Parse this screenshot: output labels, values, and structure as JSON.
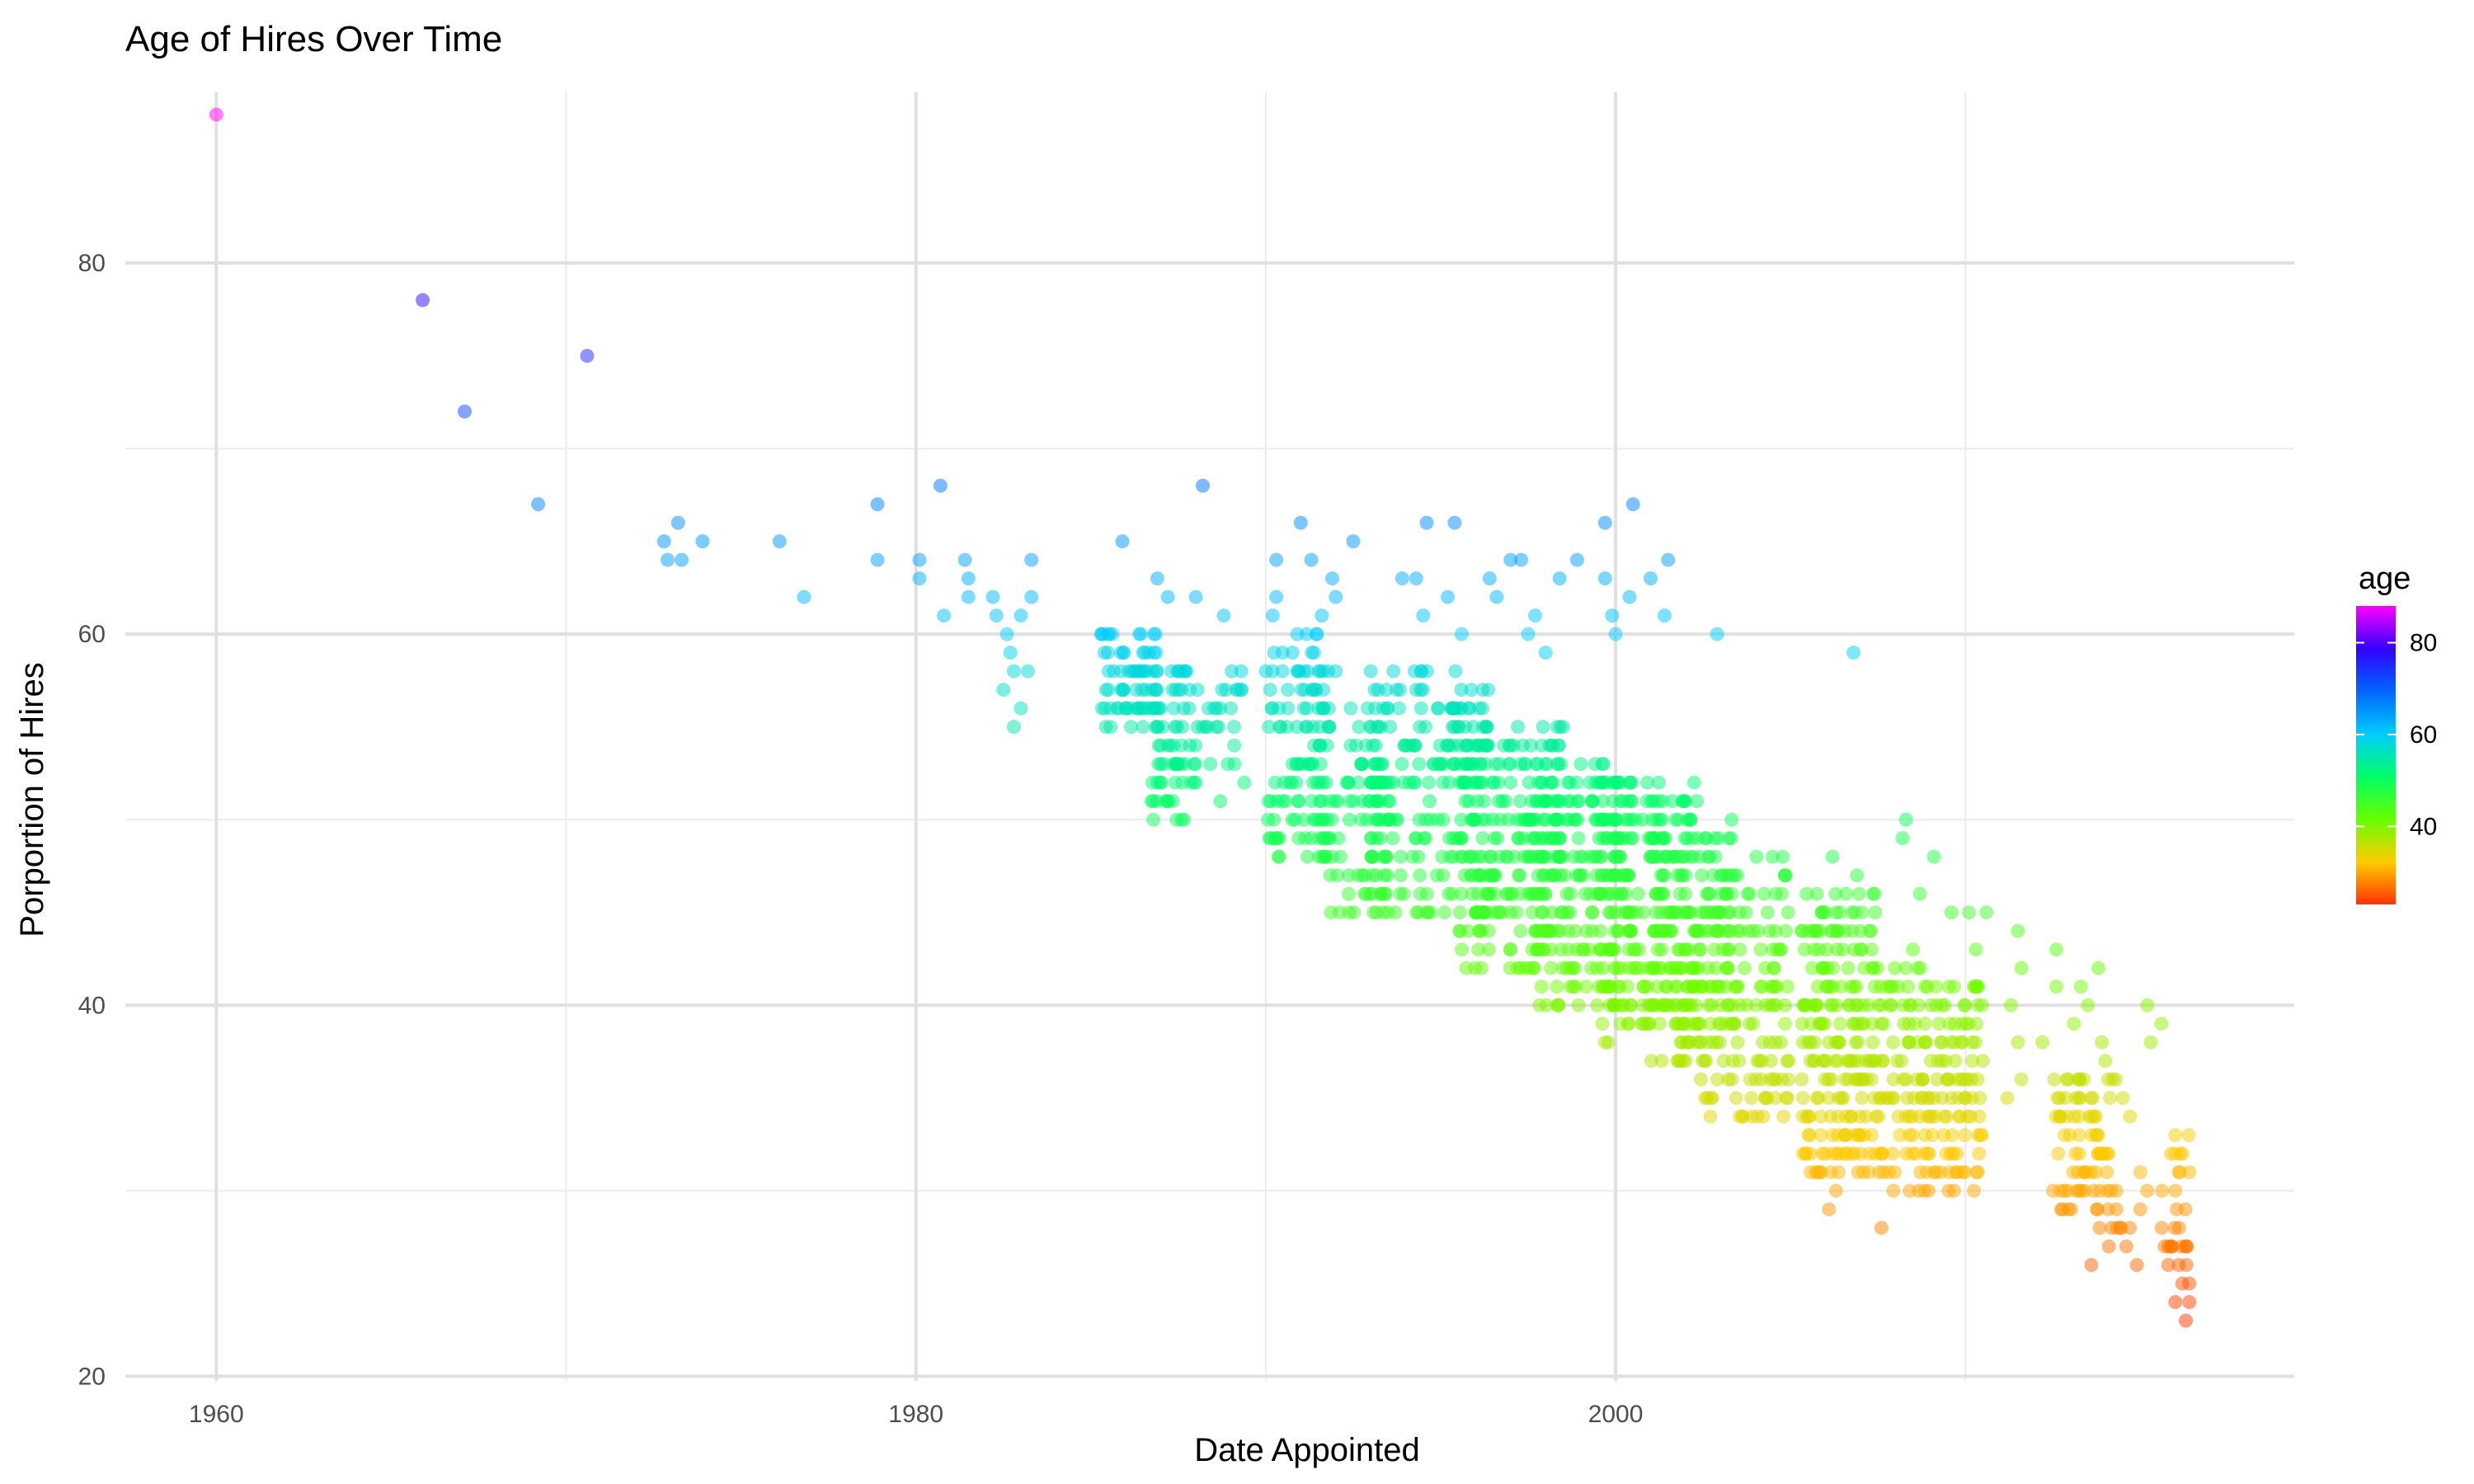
{
  "chart_data": {
    "type": "scatter",
    "title": "Age of Hires Over Time",
    "xlabel": "Date Appointed",
    "ylabel": "Porportion of Hires",
    "x_ticks": [
      1960,
      1980,
      2000
    ],
    "x_minor_ticks": [
      1970,
      1990,
      2010
    ],
    "y_ticks": [
      20,
      40,
      60,
      80
    ],
    "y_minor_ticks": [
      30,
      50,
      70
    ],
    "xlim": [
      1957.4,
      2019.4
    ],
    "ylim": [
      19.75,
      89.2
    ],
    "grid": true,
    "legend": {
      "title": "age",
      "placement": "right",
      "ticks": [
        40,
        60,
        80
      ],
      "range": [
        23,
        88
      ],
      "colors": [
        "#ff3300",
        "#ffcc00",
        "#66ff00",
        "#00ff66",
        "#00ccff",
        "#0066ff",
        "#3300ff",
        "#ff00ff"
      ]
    },
    "point_opacity": 0.5,
    "color_by": "y",
    "points": [
      [
        1960.0,
        88
      ],
      [
        1965.9,
        78
      ],
      [
        1967.1,
        72
      ],
      [
        1970.6,
        75
      ],
      [
        1969.2,
        67
      ],
      [
        1972.8,
        65
      ],
      [
        1973.2,
        66
      ],
      [
        1972.9,
        64
      ],
      [
        1973.3,
        64
      ],
      [
        1973.9,
        65
      ],
      [
        1976.1,
        65
      ],
      [
        1976.8,
        62
      ],
      [
        1978.9,
        67
      ],
      [
        1978.9,
        64
      ],
      [
        1980.7,
        68
      ],
      [
        1980.1,
        64
      ],
      [
        1980.1,
        63
      ],
      [
        1980.8,
        61
      ],
      [
        1981.4,
        64
      ],
      [
        1981.5,
        63
      ],
      [
        1981.5,
        62
      ],
      [
        1982.2,
        62
      ],
      [
        1982.3,
        61
      ],
      [
        1982.6,
        60
      ],
      [
        1982.7,
        59
      ],
      [
        1982.8,
        58
      ],
      [
        1982.5,
        57
      ],
      [
        1982.8,
        55
      ],
      [
        1983.0,
        61
      ],
      [
        1983.0,
        56
      ],
      [
        1983.3,
        64
      ],
      [
        1983.3,
        62
      ],
      [
        1983.2,
        58
      ],
      [
        1988.2,
        68
      ],
      [
        1985.9,
        65
      ],
      [
        1986.9,
        63
      ],
      [
        1987.2,
        62
      ],
      [
        1988.0,
        62
      ],
      [
        1988.8,
        61
      ],
      [
        1988.7,
        51
      ],
      [
        1988.0,
        52
      ],
      [
        1987.4,
        55
      ],
      [
        1989.0,
        56
      ],
      [
        1990.3,
        64
      ],
      [
        1990.3,
        62
      ],
      [
        1990.2,
        61
      ],
      [
        1990.9,
        60
      ],
      [
        1991.0,
        66
      ],
      [
        1991.3,
        64
      ],
      [
        1991.6,
        61
      ],
      [
        1992.5,
        65
      ],
      [
        1991.9,
        63
      ],
      [
        1992.0,
        62
      ],
      [
        1992.0,
        58
      ],
      [
        1993.0,
        58
      ],
      [
        1993.9,
        63
      ],
      [
        1994.6,
        66
      ],
      [
        1994.3,
        63
      ],
      [
        1994.5,
        61
      ],
      [
        1995.4,
        66
      ],
      [
        1995.2,
        62
      ],
      [
        1995.6,
        60
      ],
      [
        1996.4,
        63
      ],
      [
        1996.6,
        62
      ],
      [
        1997.0,
        64
      ],
      [
        1997.3,
        64
      ],
      [
        1997.5,
        60
      ],
      [
        1997.7,
        61
      ],
      [
        1998.0,
        59
      ],
      [
        1998.4,
        63
      ],
      [
        1998.9,
        64
      ],
      [
        1999.7,
        66
      ],
      [
        1999.7,
        63
      ],
      [
        1999.9,
        61
      ],
      [
        2000.0,
        60
      ],
      [
        2000.5,
        67
      ],
      [
        2000.4,
        62
      ],
      [
        2001.0,
        63
      ],
      [
        2001.5,
        64
      ],
      [
        2001.4,
        61
      ],
      [
        2002.9,
        60
      ],
      [
        2006.8,
        59
      ],
      [
        2006.2,
        48
      ],
      [
        2006.9,
        47
      ],
      [
        2007.4,
        46
      ],
      [
        2007.6,
        28
      ],
      [
        2006.1,
        29
      ],
      [
        2006.3,
        30
      ],
      [
        2008.3,
        50
      ],
      [
        2008.2,
        49
      ],
      [
        2008.7,
        46
      ],
      [
        2008.5,
        43
      ],
      [
        2009.1,
        48
      ],
      [
        2009.6,
        45
      ],
      [
        2010.1,
        45
      ],
      [
        2010.6,
        45
      ],
      [
        2010.3,
        43
      ],
      [
        2011.5,
        44
      ],
      [
        2011.6,
        42
      ],
      [
        2011.3,
        40
      ],
      [
        2011.5,
        38
      ],
      [
        2011.6,
        36
      ],
      [
        2011.2,
        35
      ],
      [
        2012.6,
        43
      ],
      [
        2012.6,
        41
      ],
      [
        2012.2,
        38
      ],
      [
        2012.9,
        34
      ],
      [
        2013.3,
        41
      ],
      [
        2013.5,
        40
      ],
      [
        2013.1,
        39
      ],
      [
        2013.8,
        42
      ],
      [
        2013.9,
        38
      ],
      [
        2014.0,
        37
      ],
      [
        2014.2,
        36
      ],
      [
        2014.5,
        35
      ],
      [
        2014.7,
        34
      ],
      [
        2013.6,
        26
      ],
      [
        2014.1,
        27
      ],
      [
        2014.7,
        28
      ],
      [
        2015.0,
        31
      ],
      [
        2015.2,
        30
      ],
      [
        2015.0,
        29
      ],
      [
        2014.9,
        26
      ],
      [
        2014.6,
        27
      ],
      [
        2015.3,
        38
      ],
      [
        2015.6,
        39
      ],
      [
        2015.2,
        40
      ],
      [
        2016.0,
        33
      ],
      [
        2016.2,
        32
      ],
      [
        2016.1,
        31
      ],
      [
        2016.0,
        30
      ],
      [
        2015.9,
        27
      ],
      [
        2016.3,
        27
      ],
      [
        2015.8,
        26
      ],
      [
        2016.1,
        26
      ],
      [
        2016.2,
        25
      ],
      [
        2016.0,
        24
      ],
      [
        2016.4,
        24
      ],
      [
        2016.3,
        23
      ],
      [
        2016.4,
        25
      ]
    ],
    "clusters": [
      {
        "x": [
          1985.3,
          1987.0
        ],
        "y": [
          55,
          60
        ],
        "n": 70
      },
      {
        "x": [
          1986.7,
          1987.7
        ],
        "y": [
          50,
          58
        ],
        "n": 50
      },
      {
        "x": [
          1987.0,
          1989.4
        ],
        "y": [
          52,
          58
        ],
        "n": 40
      },
      {
        "x": [
          1990.0,
          1991.9
        ],
        "y": [
          48,
          60
        ],
        "n": 110
      },
      {
        "x": [
          1991.5,
          1993.5
        ],
        "y": [
          45,
          56
        ],
        "n": 80
      },
      {
        "x": [
          1993.0,
          1996.5
        ],
        "y": [
          45,
          58
        ],
        "n": 200
      },
      {
        "x": [
          1995.5,
          1998.5
        ],
        "y": [
          42,
          55
        ],
        "n": 200
      },
      {
        "x": [
          1997.5,
          2000.5
        ],
        "y": [
          40,
          53
        ],
        "n": 200
      },
      {
        "x": [
          1999.5,
          2002.5
        ],
        "y": [
          38,
          52
        ],
        "n": 190
      },
      {
        "x": [
          2001.0,
          2003.5
        ],
        "y": [
          36,
          50
        ],
        "n": 150
      },
      {
        "x": [
          2002.5,
          2005.0
        ],
        "y": [
          34,
          48
        ],
        "n": 120
      },
      {
        "x": [
          2005.3,
          2007.5
        ],
        "y": [
          31,
          46
        ],
        "n": 200
      },
      {
        "x": [
          2007.5,
          2009.0
        ],
        "y": [
          30,
          42
        ],
        "n": 90
      },
      {
        "x": [
          2009.0,
          2010.5
        ],
        "y": [
          30,
          41
        ],
        "n": 90
      },
      {
        "x": [
          2012.5,
          2014.5
        ],
        "y": [
          28,
          36
        ],
        "n": 80
      },
      {
        "x": [
          2015.5,
          2016.4
        ],
        "y": [
          26,
          33
        ],
        "n": 20
      }
    ]
  }
}
